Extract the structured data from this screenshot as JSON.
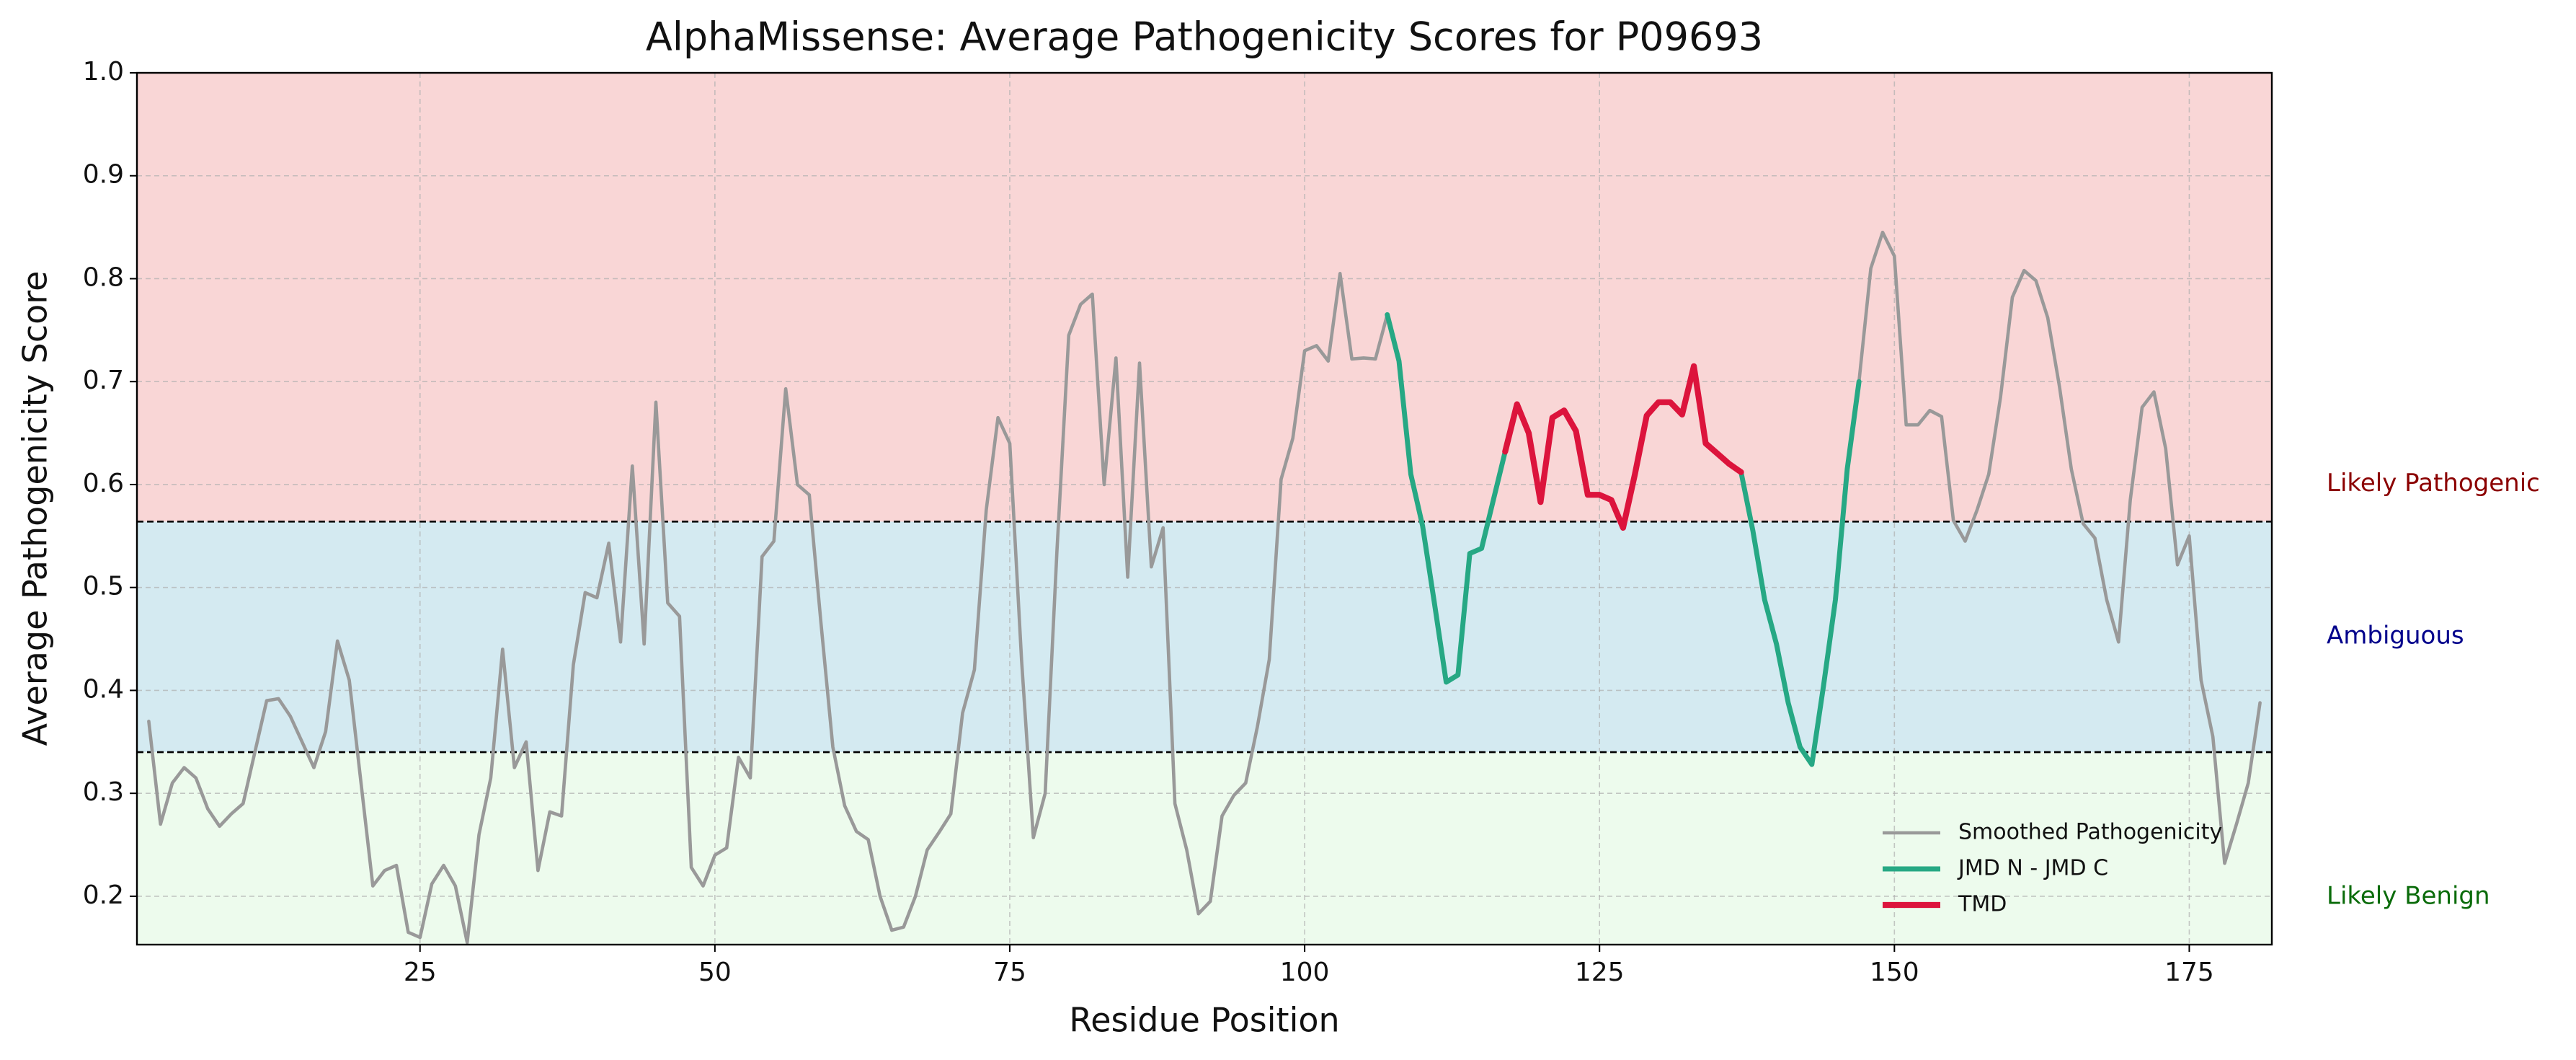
{
  "chart_data": {
    "type": "line",
    "title": "AlphaMissense: Average Pathogenicity Scores for P09693",
    "xlabel": "Residue Position",
    "ylabel": "Average Pathogenicity Score",
    "xlim": [
      1,
      182
    ],
    "ylim": [
      0.153,
      1
    ],
    "xticks": [
      25,
      50,
      75,
      100,
      125,
      150,
      175
    ],
    "yticks": [
      0.2,
      0.3,
      0.4,
      0.5,
      0.6,
      0.7,
      0.8,
      0.9,
      {
        "value": 1,
        "label": "1.0"
      }
    ],
    "grid": true,
    "legend": "lower right",
    "thresholds": [
      0.34,
      0.564
    ],
    "bands": [
      {
        "label": "Likely Benign",
        "color": "#edfbed",
        "text_color": "#0a6b0a"
      },
      {
        "label": "Ambiguous",
        "color": "#d4eaf1",
        "text_color": "#00008b"
      },
      {
        "label": "Likely Pathogenic",
        "color": "#f9d6d6",
        "text_color": "#8b0000"
      }
    ],
    "series": [
      {
        "name": "Smoothed Pathogenicity",
        "color": "#999999",
        "width": 4.6,
        "x": [
          2,
          3,
          4,
          5,
          6,
          7,
          8,
          9,
          10,
          11,
          12,
          13,
          14,
          15,
          16,
          17,
          18,
          19,
          20,
          21,
          22,
          23,
          24,
          25,
          26,
          27,
          28,
          29,
          30,
          31,
          32,
          33,
          34,
          35,
          36,
          37,
          38,
          39,
          40,
          41,
          42,
          43,
          44,
          45,
          46,
          47,
          48,
          49,
          50,
          51,
          52,
          53,
          54,
          55,
          56,
          57,
          58,
          59,
          60,
          61,
          62,
          63,
          64,
          65,
          66,
          67,
          68,
          69,
          70,
          71,
          72,
          73,
          74,
          75,
          76,
          77,
          78,
          79,
          80,
          81,
          82,
          83,
          84,
          85,
          86,
          87,
          88,
          89,
          90,
          91,
          92,
          93,
          94,
          95,
          96,
          97,
          98,
          99,
          100,
          101,
          102,
          103,
          104,
          105,
          106,
          107,
          108,
          109,
          110,
          111,
          112,
          113,
          114,
          115,
          116,
          117,
          118,
          119,
          120,
          121,
          122,
          123,
          124,
          125,
          126,
          127,
          128,
          129,
          130,
          131,
          132,
          133,
          134,
          135,
          136,
          137,
          138,
          139,
          140,
          141,
          142,
          143,
          144,
          145,
          146,
          147,
          148,
          149,
          150,
          151,
          152,
          153,
          154,
          155,
          156,
          157,
          158,
          159,
          160,
          161,
          162,
          163,
          164,
          165,
          166,
          167,
          168,
          169,
          170,
          171,
          172,
          173,
          174,
          175,
          176,
          177,
          178,
          179,
          180,
          181
        ],
        "values": [
          0.37,
          0.27,
          0.31,
          0.325,
          0.315,
          0.285,
          0.268,
          0.28,
          0.29,
          0.34,
          0.39,
          0.392,
          0.375,
          0.35,
          0.325,
          0.36,
          0.448,
          0.41,
          0.31,
          0.21,
          0.225,
          0.23,
          0.165,
          0.16,
          0.212,
          0.23,
          0.21,
          0.155,
          0.26,
          0.315,
          0.44,
          0.325,
          0.35,
          0.225,
          0.282,
          0.278,
          0.425,
          0.495,
          0.49,
          0.543,
          0.447,
          0.618,
          0.445,
          0.68,
          0.485,
          0.472,
          0.228,
          0.21,
          0.24,
          0.247,
          0.335,
          0.315,
          0.53,
          0.545,
          0.693,
          0.6,
          0.59,
          0.465,
          0.345,
          0.288,
          0.263,
          0.255,
          0.2,
          0.167,
          0.17,
          0.2,
          0.245,
          0.262,
          0.28,
          0.378,
          0.42,
          0.575,
          0.665,
          0.64,
          0.43,
          0.257,
          0.3,
          0.535,
          0.745,
          0.775,
          0.785,
          0.6,
          0.723,
          0.51,
          0.718,
          0.52,
          0.558,
          0.29,
          0.245,
          0.183,
          0.195,
          0.278,
          0.298,
          0.31,
          0.365,
          0.43,
          0.605,
          0.645,
          0.73,
          0.735,
          0.72,
          0.805,
          0.722,
          0.723,
          0.722,
          0.765,
          0.72,
          0.61,
          0.56,
          0.485,
          0.408,
          0.415,
          0.533,
          0.538,
          0.585,
          0.632,
          0.678,
          0.65,
          0.583,
          0.665,
          0.672,
          0.652,
          0.59,
          0.59,
          0.585,
          0.558,
          0.61,
          0.667,
          0.68,
          0.68,
          0.668,
          0.715,
          0.64,
          0.63,
          0.62,
          0.612,
          0.555,
          0.488,
          0.445,
          0.388,
          0.345,
          0.328,
          0.405,
          0.488,
          0.615,
          0.7,
          0.81,
          0.845,
          0.822,
          0.658,
          0.658,
          0.672,
          0.666,
          0.565,
          0.545,
          0.575,
          0.61,
          0.685,
          0.782,
          0.808,
          0.798,
          0.762,
          0.695,
          0.615,
          0.562,
          0.548,
          0.488,
          0.447,
          0.585,
          0.675,
          0.69,
          0.635,
          0.522,
          0.55,
          0.41,
          0.355,
          0.232,
          0.27,
          0.31,
          0.388
        ]
      },
      {
        "name": "JMD N - JMD C",
        "color": "#26a884",
        "width": 6.9,
        "x": [
          107,
          108,
          109,
          110,
          111,
          112,
          113,
          114,
          115,
          116,
          117,
          118,
          119,
          120,
          121,
          122,
          123,
          124,
          125,
          126,
          127,
          128,
          129,
          130,
          131,
          132,
          133,
          134,
          135,
          136,
          137,
          138,
          139,
          140,
          141,
          142,
          143,
          144,
          145,
          146,
          147
        ],
        "values": [
          0.765,
          0.72,
          0.61,
          0.56,
          0.485,
          0.408,
          0.415,
          0.533,
          0.538,
          0.585,
          0.632,
          null,
          null,
          null,
          null,
          null,
          null,
          null,
          null,
          null,
          null,
          null,
          null,
          null,
          null,
          null,
          null,
          null,
          null,
          null,
          0.612,
          0.555,
          0.488,
          0.445,
          0.388,
          0.345,
          0.328,
          0.405,
          0.488,
          0.615,
          0.7
        ]
      },
      {
        "name": "TMD",
        "color": "#dc143c",
        "width": 8.2,
        "x": [
          117,
          118,
          119,
          120,
          121,
          122,
          123,
          124,
          125,
          126,
          127,
          128,
          129,
          130,
          131,
          132,
          133,
          134,
          135,
          136,
          137
        ],
        "values": [
          0.632,
          0.678,
          0.65,
          0.583,
          0.665,
          0.672,
          0.652,
          0.59,
          0.59,
          0.585,
          0.558,
          0.61,
          0.667,
          0.68,
          0.68,
          0.668,
          0.715,
          0.64,
          0.63,
          0.62,
          0.612
        ]
      }
    ]
  }
}
